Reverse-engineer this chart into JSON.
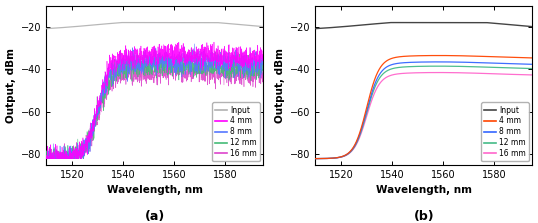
{
  "xlim": [
    1510,
    1595
  ],
  "ylim": [
    -85,
    -10
  ],
  "yticks": [
    -80,
    -60,
    -40,
    -20
  ],
  "xticks": [
    1520,
    1540,
    1560,
    1580
  ],
  "xlabel": "Wavelength, nm",
  "ylabel": "Output, dBm",
  "label_a": "(a)",
  "label_b": "(b)",
  "legend_labels": [
    "Input",
    "4 mm",
    "8 mm",
    "12 mm",
    "16 mm"
  ],
  "colors_a": [
    "#b0b0b0",
    "#ff00ff",
    "#5577ff",
    "#44bb77",
    "#dd44cc"
  ],
  "colors_b": [
    "#444444",
    "#ff4400",
    "#3366ff",
    "#44bb88",
    "#ff66cc"
  ],
  "figsize": [
    5.38,
    2.23
  ],
  "dpi": 100
}
